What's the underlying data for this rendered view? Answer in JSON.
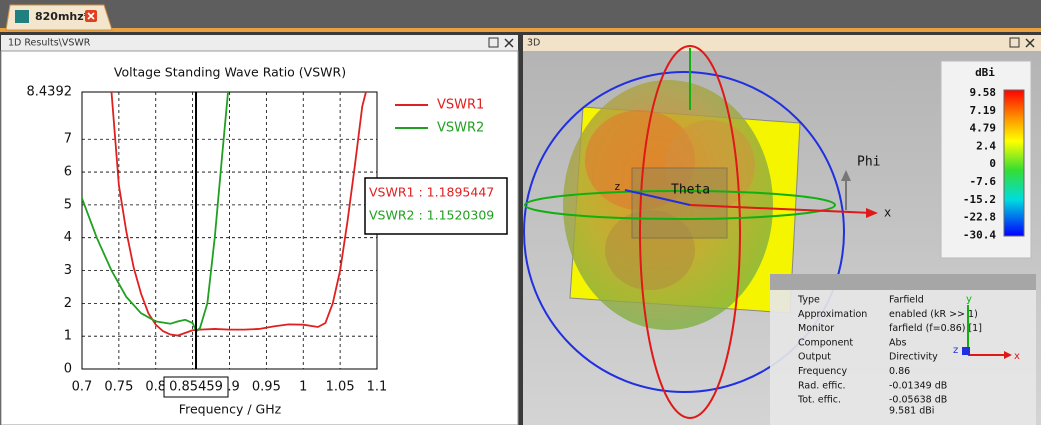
{
  "window": {
    "tab": "820mhz*"
  },
  "left_panel": {
    "title": "1D Results\\VSWR"
  },
  "right_panel": {
    "title": "3D",
    "labels": {
      "phi": "Phi",
      "theta": "Theta",
      "x_axis": "x",
      "z_axis": "z",
      "small_x": "x",
      "small_y": "y",
      "small_z": "z"
    },
    "colorbar": {
      "unit": "dBi",
      "ticks": [
        "9.58",
        "7.19",
        "4.79",
        "2.4",
        "0",
        "-7.6",
        "-15.2",
        "-22.8",
        "-30.4"
      ]
    },
    "info": {
      "rows": [
        {
          "key": "Type",
          "value": "Farfield"
        },
        {
          "key": "Approximation",
          "value": "enabled (kR >> 1)"
        },
        {
          "key": "Monitor",
          "value": "farfield (f=0.86) [1]"
        },
        {
          "key": "Component",
          "value": "Abs"
        },
        {
          "key": "Output",
          "value": "Directivity"
        },
        {
          "key": "Frequency",
          "value": "0.86"
        },
        {
          "key": "Rad. effic.",
          "value": "-0.01349 dB"
        },
        {
          "key": "Tot. effic.",
          "value": "-0.05638 dB"
        }
      ],
      "directivity": "9.581 dBi"
    }
  },
  "chart_data": {
    "type": "line",
    "title": "Voltage Standing Wave Ratio (VSWR)",
    "x_label": "Frequency / GHz",
    "xlim": [
      0.7,
      1.1
    ],
    "xticks": [
      0.7,
      0.75,
      0.8,
      0.85,
      0.9,
      0.95,
      1,
      1.05,
      1.1
    ],
    "ylim": [
      0,
      8.4392
    ],
    "yticks": [
      0,
      1,
      2,
      3,
      4,
      5,
      6,
      7,
      8.4392
    ],
    "grid": true,
    "legend": "top-right",
    "series": [
      {
        "name": "VSWR1",
        "color": "#e02020",
        "x": [
          0.74,
          0.75,
          0.76,
          0.77,
          0.78,
          0.79,
          0.8,
          0.81,
          0.82,
          0.83,
          0.84,
          0.85,
          0.86,
          0.88,
          0.9,
          0.92,
          0.94,
          0.96,
          0.98,
          1,
          1.02,
          1.03,
          1.04,
          1.05,
          1.06,
          1.07,
          1.08,
          1.085
        ],
        "values": [
          8.4392,
          5.6,
          4.2,
          3.1,
          2.3,
          1.7,
          1.35,
          1.15,
          1.05,
          1.02,
          1.1,
          1.18,
          1.2,
          1.22,
          1.2,
          1.2,
          1.22,
          1.3,
          1.36,
          1.35,
          1.28,
          1.4,
          2.0,
          3.0,
          4.5,
          6.2,
          8.0,
          8.4392
        ]
      },
      {
        "name": "VSWR2",
        "color": "#20a020",
        "x": [
          0.7,
          0.72,
          0.74,
          0.76,
          0.78,
          0.8,
          0.82,
          0.83,
          0.84,
          0.85,
          0.855,
          0.86,
          0.87,
          0.88,
          0.89,
          0.898
        ],
        "values": [
          5.2,
          4.0,
          3.0,
          2.2,
          1.7,
          1.45,
          1.38,
          1.45,
          1.5,
          1.4,
          1.15,
          1.25,
          2.0,
          4.0,
          6.5,
          8.4392
        ]
      }
    ],
    "marker": {
      "x": 0.85459,
      "label": "0.85459"
    },
    "readouts": [
      {
        "text": "VSWR1 : 1.1895447",
        "color": "#e02020"
      },
      {
        "text": "VSWR2 : 1.1520309",
        "color": "#20a020"
      }
    ]
  }
}
